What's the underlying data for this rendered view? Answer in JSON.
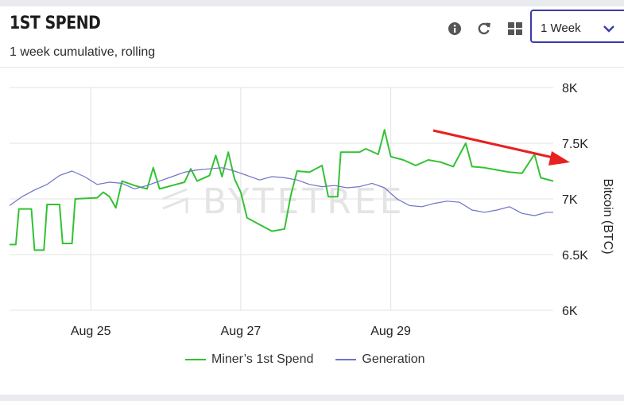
{
  "header": {
    "title": "1ST SPEND",
    "subtitle": "1 week cumulative, rolling",
    "period_select": {
      "value": "1 Week"
    },
    "icons": [
      "info-icon",
      "refresh-icon",
      "grid-icon",
      "chevron-down-icon"
    ]
  },
  "watermark": "BYTETREE",
  "colors": {
    "miner": "#33c233",
    "generation": "#6f73c9",
    "arrow": "#e82020",
    "select_border": "#3c3ca8"
  },
  "chart_data": {
    "type": "line",
    "ylabel": "Bitcoin (BTC)",
    "ylim": [
      6000,
      8000
    ],
    "yticks": [
      6000,
      6500,
      7000,
      7500,
      8000
    ],
    "ytick_labels": [
      "6K",
      "6.5K",
      "7K",
      "7.5K",
      "8K"
    ],
    "xlim": [
      "2018-08-23 22:00",
      "2018-08-31 04:00"
    ],
    "xticks": [
      "2018-08-25",
      "2018-08-27",
      "2018-08-29"
    ],
    "xtick_labels": [
      "Aug 25",
      "Aug 27",
      "Aug 29"
    ],
    "grid": true,
    "legend": "bottom",
    "series": [
      {
        "name": "Miner’s 1st Spend",
        "color": "#33c233",
        "points": [
          [
            "2018-08-23 22:00",
            6590
          ],
          [
            "2018-08-24 00:00",
            6590
          ],
          [
            "2018-08-24 01:00",
            6910
          ],
          [
            "2018-08-24 05:00",
            6910
          ],
          [
            "2018-08-24 06:00",
            6540
          ],
          [
            "2018-08-24 09:00",
            6540
          ],
          [
            "2018-08-24 10:00",
            6950
          ],
          [
            "2018-08-24 14:00",
            6950
          ],
          [
            "2018-08-24 15:00",
            6600
          ],
          [
            "2018-08-24 18:00",
            6600
          ],
          [
            "2018-08-24 19:00",
            7000
          ],
          [
            "2018-08-25 02:00",
            7010
          ],
          [
            "2018-08-25 04:00",
            7060
          ],
          [
            "2018-08-25 06:00",
            7020
          ],
          [
            "2018-08-25 08:00",
            6920
          ],
          [
            "2018-08-25 10:00",
            7160
          ],
          [
            "2018-08-25 14:00",
            7120
          ],
          [
            "2018-08-25 18:00",
            7090
          ],
          [
            "2018-08-25 20:00",
            7280
          ],
          [
            "2018-08-25 22:00",
            7090
          ],
          [
            "2018-08-26 02:00",
            7120
          ],
          [
            "2018-08-26 06:00",
            7150
          ],
          [
            "2018-08-26 08:00",
            7270
          ],
          [
            "2018-08-26 10:00",
            7160
          ],
          [
            "2018-08-26 14:00",
            7210
          ],
          [
            "2018-08-26 16:00",
            7390
          ],
          [
            "2018-08-26 18:00",
            7200
          ],
          [
            "2018-08-26 20:00",
            7420
          ],
          [
            "2018-08-26 22:00",
            7180
          ],
          [
            "2018-08-27 00:00",
            7060
          ],
          [
            "2018-08-27 02:00",
            6830
          ],
          [
            "2018-08-27 06:00",
            6770
          ],
          [
            "2018-08-27 10:00",
            6710
          ],
          [
            "2018-08-27 14:00",
            6730
          ],
          [
            "2018-08-27 16:00",
            7030
          ],
          [
            "2018-08-27 18:00",
            7250
          ],
          [
            "2018-08-27 22:00",
            7240
          ],
          [
            "2018-08-28 02:00",
            7300
          ],
          [
            "2018-08-28 04:00",
            7020
          ],
          [
            "2018-08-28 07:00",
            7020
          ],
          [
            "2018-08-28 08:00",
            7420
          ],
          [
            "2018-08-28 14:00",
            7420
          ],
          [
            "2018-08-28 16:00",
            7450
          ],
          [
            "2018-08-28 20:00",
            7400
          ],
          [
            "2018-08-28 22:00",
            7620
          ],
          [
            "2018-08-29 00:00",
            7380
          ],
          [
            "2018-08-29 04:00",
            7350
          ],
          [
            "2018-08-29 08:00",
            7300
          ],
          [
            "2018-08-29 12:00",
            7350
          ],
          [
            "2018-08-29 16:00",
            7330
          ],
          [
            "2018-08-29 20:00",
            7290
          ],
          [
            "2018-08-30 00:00",
            7500
          ],
          [
            "2018-08-30 02:00",
            7290
          ],
          [
            "2018-08-30 06:00",
            7280
          ],
          [
            "2018-08-30 10:00",
            7260
          ],
          [
            "2018-08-30 14:00",
            7240
          ],
          [
            "2018-08-30 18:00",
            7230
          ],
          [
            "2018-08-30 22:00",
            7400
          ],
          [
            "2018-08-31 00:00",
            7190
          ],
          [
            "2018-08-31 04:00",
            7160
          ]
        ]
      },
      {
        "name": "Generation",
        "color": "#6f73c9",
        "points": [
          [
            "2018-08-23 22:00",
            6940
          ],
          [
            "2018-08-24 02:00",
            7020
          ],
          [
            "2018-08-24 06:00",
            7080
          ],
          [
            "2018-08-24 10:00",
            7130
          ],
          [
            "2018-08-24 14:00",
            7210
          ],
          [
            "2018-08-24 18:00",
            7250
          ],
          [
            "2018-08-24 22:00",
            7200
          ],
          [
            "2018-08-25 02:00",
            7130
          ],
          [
            "2018-08-25 06:00",
            7150
          ],
          [
            "2018-08-25 10:00",
            7140
          ],
          [
            "2018-08-25 14:00",
            7090
          ],
          [
            "2018-08-25 18:00",
            7120
          ],
          [
            "2018-08-25 22:00",
            7160
          ],
          [
            "2018-08-26 02:00",
            7200
          ],
          [
            "2018-08-26 06:00",
            7240
          ],
          [
            "2018-08-26 10:00",
            7260
          ],
          [
            "2018-08-26 14:00",
            7270
          ],
          [
            "2018-08-26 18:00",
            7280
          ],
          [
            "2018-08-26 22:00",
            7250
          ],
          [
            "2018-08-27 02:00",
            7210
          ],
          [
            "2018-08-27 06:00",
            7170
          ],
          [
            "2018-08-27 10:00",
            7200
          ],
          [
            "2018-08-27 14:00",
            7190
          ],
          [
            "2018-08-27 18:00",
            7170
          ],
          [
            "2018-08-27 22:00",
            7130
          ],
          [
            "2018-08-28 02:00",
            7110
          ],
          [
            "2018-08-28 06:00",
            7120
          ],
          [
            "2018-08-28 10:00",
            7100
          ],
          [
            "2018-08-28 14:00",
            7110
          ],
          [
            "2018-08-28 18:00",
            7140
          ],
          [
            "2018-08-28 22:00",
            7100
          ],
          [
            "2018-08-29 02:00",
            7000
          ],
          [
            "2018-08-29 06:00",
            6940
          ],
          [
            "2018-08-29 10:00",
            6930
          ],
          [
            "2018-08-29 14:00",
            6960
          ],
          [
            "2018-08-29 18:00",
            6980
          ],
          [
            "2018-08-29 22:00",
            6970
          ],
          [
            "2018-08-30 02:00",
            6900
          ],
          [
            "2018-08-30 06:00",
            6880
          ],
          [
            "2018-08-30 10:00",
            6900
          ],
          [
            "2018-08-30 14:00",
            6930
          ],
          [
            "2018-08-30 18:00",
            6870
          ],
          [
            "2018-08-30 22:00",
            6850
          ],
          [
            "2018-08-31 02:00",
            6880
          ],
          [
            "2018-08-31 04:00",
            6880
          ]
        ]
      }
    ]
  }
}
